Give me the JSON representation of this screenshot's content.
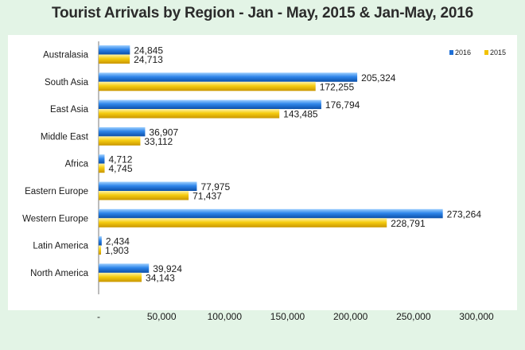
{
  "chart_data": {
    "type": "bar",
    "orientation": "horizontal",
    "title": "Tourist Arrivals by Region - Jan - May, 2015 & Jan-May, 2016",
    "xlabel": "",
    "ylabel": "",
    "categories": [
      "Australasia",
      "South Asia",
      "East Asia",
      "Middle East",
      "Africa",
      "Eastern Europe",
      "Western Europe",
      "Latin America",
      "North America"
    ],
    "series": [
      {
        "name": "2016",
        "color": "#1f6fd6",
        "values": [
          24845,
          205324,
          176794,
          36907,
          4712,
          77975,
          273264,
          2434,
          39924
        ],
        "labels": [
          "24,845",
          "205,324",
          "176,794",
          "36,907",
          "4,712",
          "77,975",
          "273,264",
          "2,434",
          "39,924"
        ]
      },
      {
        "name": "2015",
        "color": "#f2c200",
        "values": [
          24713,
          172255,
          143485,
          33112,
          4745,
          71437,
          228791,
          1903,
          34143
        ],
        "labels": [
          "24,713",
          "172,255",
          "143,485",
          "33,112",
          "4,745",
          "71,437",
          "228,791",
          "1,903",
          "34,143"
        ]
      }
    ],
    "xlim": [
      0,
      300000
    ],
    "xticks": [
      0,
      50000,
      100000,
      150000,
      200000,
      250000,
      300000
    ],
    "xtick_labels": [
      "-",
      "50,000",
      "100,000",
      "150,000",
      "200,000",
      "250,000",
      "300,000"
    ],
    "grid": false,
    "legend_position": "top-right"
  }
}
